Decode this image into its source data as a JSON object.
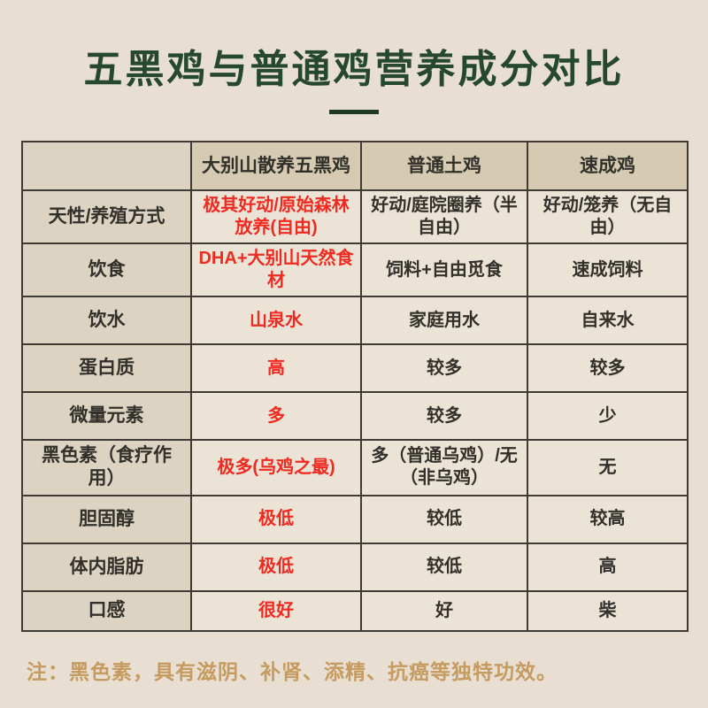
{
  "page": {
    "title": "五黑鸡与普通鸡营养成分对比",
    "note": "注：黑色素，具有滋阴、补肾、添精、抗癌等独特功效。"
  },
  "colors": {
    "page_bg": "#e8dfd2",
    "title_green": "#26492e",
    "divider_green": "#1e3a25",
    "header_bg": "#d6cbb2",
    "label_col_bg": "#ddd3c2",
    "cell_bg": "#ebe3d6",
    "border": "#3f3a33",
    "text": "#32302a",
    "highlight_red": "#ef2b21",
    "note_gold": "#c59b60"
  },
  "table": {
    "header": [
      "",
      "大别山散养五黑鸡",
      "普通土鸡",
      "速成鸡"
    ],
    "rows": [
      {
        "label": "天性/养殖方式",
        "cells": [
          "极其好动/原始森林放养(自由)",
          "好动/庭院圈养（半自由）",
          "好动/笼养（无自由）"
        ]
      },
      {
        "label": "饮食",
        "cells": [
          "DHA+大别山天然食材",
          "饲料+自由觅食",
          "速成饲料"
        ]
      },
      {
        "label": "饮水",
        "cells": [
          "山泉水",
          "家庭用水",
          "自来水"
        ]
      },
      {
        "label": "蛋白质",
        "cells": [
          "高",
          "较多",
          "较多"
        ]
      },
      {
        "label": "微量元素",
        "cells": [
          "多",
          "较多",
          "少"
        ]
      },
      {
        "label": "黑色素（食疗作用）",
        "cells": [
          "极多(乌鸡之最)",
          "多（普通乌鸡）/无（非乌鸡）",
          "无"
        ]
      },
      {
        "label": "胆固醇",
        "cells": [
          "极低",
          "较低",
          "较高"
        ]
      },
      {
        "label": "体内脂肪",
        "cells": [
          "极低",
          "较低",
          "高"
        ]
      },
      {
        "label": "口感",
        "cells": [
          "很好",
          "好",
          "柴"
        ]
      }
    ]
  }
}
